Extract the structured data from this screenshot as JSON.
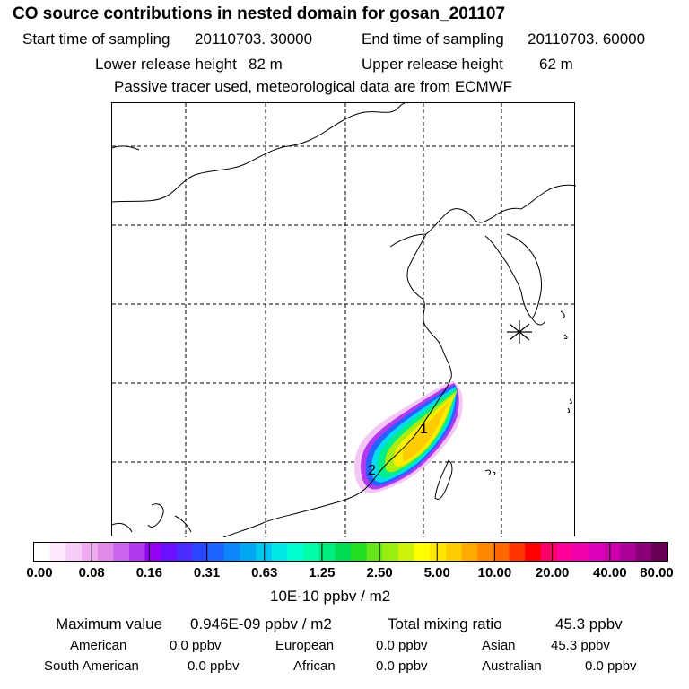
{
  "header": {
    "title": "CO  source contributions in nested domain for gosan_201107",
    "start_time_label": "Start time of sampling",
    "start_time_value": "20110703. 30000",
    "end_time_label": "End time of sampling",
    "end_time_value": "20110703. 60000",
    "lower_height_label": "Lower release height",
    "lower_height_value": "82 m",
    "upper_height_label": "Upper release height",
    "upper_height_value": "62 m",
    "info": "Passive tracer used, meteorological data are from ECMWF"
  },
  "map": {
    "markers": [
      "1",
      "2"
    ],
    "receptor_symbol": "asterisk-icon"
  },
  "colorbar": {
    "tick_labels": [
      "0.00",
      "0.08",
      "0.16",
      "0.31",
      "0.63",
      "1.25",
      "2.50",
      "5.00",
      "10.00",
      "20.00",
      "40.00",
      "80.00"
    ],
    "unit": "10E-10 ppbv / m2",
    "colors": [
      "#ffffff",
      "#fde8fd",
      "#f7ccf7",
      "#f0aaf0",
      "#e18ae6",
      "#cc66ee",
      "#b23aee",
      "#9400f2",
      "#6a10ff",
      "#4a2cff",
      "#2a48ff",
      "#1a66ff",
      "#0c86f8",
      "#00a6f2",
      "#00c6ee",
      "#00e8e8",
      "#00ffd0",
      "#00ffa8",
      "#00ee80",
      "#00dd55",
      "#22dd22",
      "#66e61a",
      "#99ee11",
      "#ccf208",
      "#ffff00",
      "#ffe600",
      "#ffcc00",
      "#ffaa00",
      "#ff8800",
      "#ff6600",
      "#ff3300",
      "#ff0000",
      "#ff0066",
      "#ff0099",
      "#ee00aa",
      "#dd00bb",
      "#cc00aa",
      "#aa0099",
      "#880077",
      "#660055"
    ]
  },
  "stats": {
    "max_label": "Maximum value",
    "max_value": "0.946E-09 ppbv / m2",
    "total_label": "Total mixing ratio",
    "total_value": "45.3 ppbv"
  },
  "regions": [
    {
      "name": "American",
      "value": "0.0 ppbv"
    },
    {
      "name": "European",
      "value": "0.0 ppbv"
    },
    {
      "name": "Asian",
      "value": "45.3 ppbv"
    },
    {
      "name": "South American",
      "value": "0.0 ppbv"
    },
    {
      "name": "African",
      "value": "0.0 ppbv"
    },
    {
      "name": "Australian",
      "value": "0.0 ppbv"
    }
  ]
}
